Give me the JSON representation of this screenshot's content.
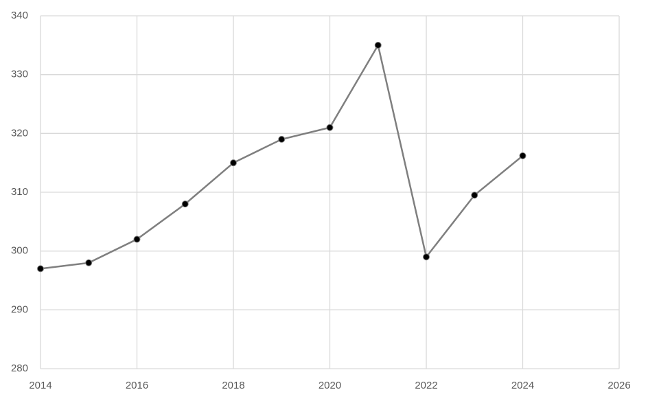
{
  "chart_data": {
    "type": "line",
    "x": [
      2014,
      2015,
      2016,
      2017,
      2018,
      2019,
      2020,
      2021,
      2022,
      2023,
      2024
    ],
    "values": [
      297,
      298,
      302,
      308,
      315,
      319,
      321,
      335,
      299,
      309.5,
      316.2
    ],
    "color": "#7f7f7f",
    "marker_color": "#000000",
    "xlim": [
      2014,
      2026
    ],
    "xticks": [
      2014,
      2016,
      2018,
      2020,
      2022,
      2024,
      2026
    ],
    "ylim": [
      280,
      340
    ],
    "yticks": [
      280,
      290,
      300,
      310,
      320,
      330,
      340
    ],
    "grid": true
  }
}
